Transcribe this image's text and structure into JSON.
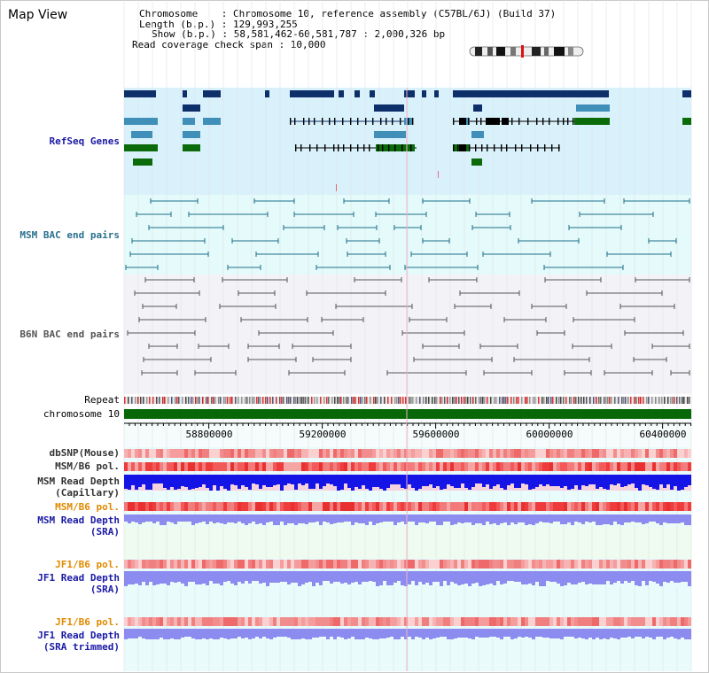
{
  "header": {
    "title": "Map View",
    "chromosome_line": "Chromosome    : Chromosome 10, reference assembly (C57BL/6J) (Build 37)",
    "length_line": "Length (b.p.) : 129,993,255",
    "show_line": "Show (b.p.) : 58,581,462-60,581,787 : 2,000,326 bp",
    "coverage_line": "Read coverage check span : 10,000"
  },
  "tracks": {
    "refseq": "RefSeq Genes",
    "msm_bac": "MSM BAC end pairs",
    "b6n_bac": "B6N BAC end pairs",
    "repeat": "Repeat",
    "chromosome": "chromosome 10",
    "dbsnp": "dbSNP(Mouse)",
    "msm_b6_pol_1": "MSM/B6 pol.",
    "msm_depth_cap_1": "MSM Read Depth",
    "msm_depth_cap_2": "(Capillary)",
    "msm_b6_pol_2": "MSM/B6 pol.",
    "msm_depth_sra_1": "MSM Read Depth",
    "msm_depth_sra_2": "(SRA)",
    "jf1_b6_pol_1": "JF1/B6 pol.",
    "jf1_depth_sra_1": "JF1 Read Depth",
    "jf1_depth_sra_2": "(SRA)",
    "jf1_b6_pol_2": "JF1/B6 pol.",
    "jf1_depth_trim_1": "JF1 Read Depth",
    "jf1_depth_trim_2": "(SRA trimmed)"
  },
  "ruler": {
    "ticks": [
      "58800000",
      "59200000",
      "59600000",
      "60000000",
      "60400000"
    ]
  },
  "colors": {
    "refseq_bg": "#d9f1fb",
    "msm_bac_bg": "#e5fafa",
    "b6n_bac_bg": "#f3f3f7",
    "chromosome": "#086808",
    "gene_navy": "#0d2f6a",
    "gene_teal": "#3f8fb8",
    "gene_green": "#0b6b0b",
    "msm_bac": "#1d6f8a",
    "b6n_bac": "#555555",
    "depth_blue": "#1414e6",
    "depth_light": "#8c8cf0"
  }
}
